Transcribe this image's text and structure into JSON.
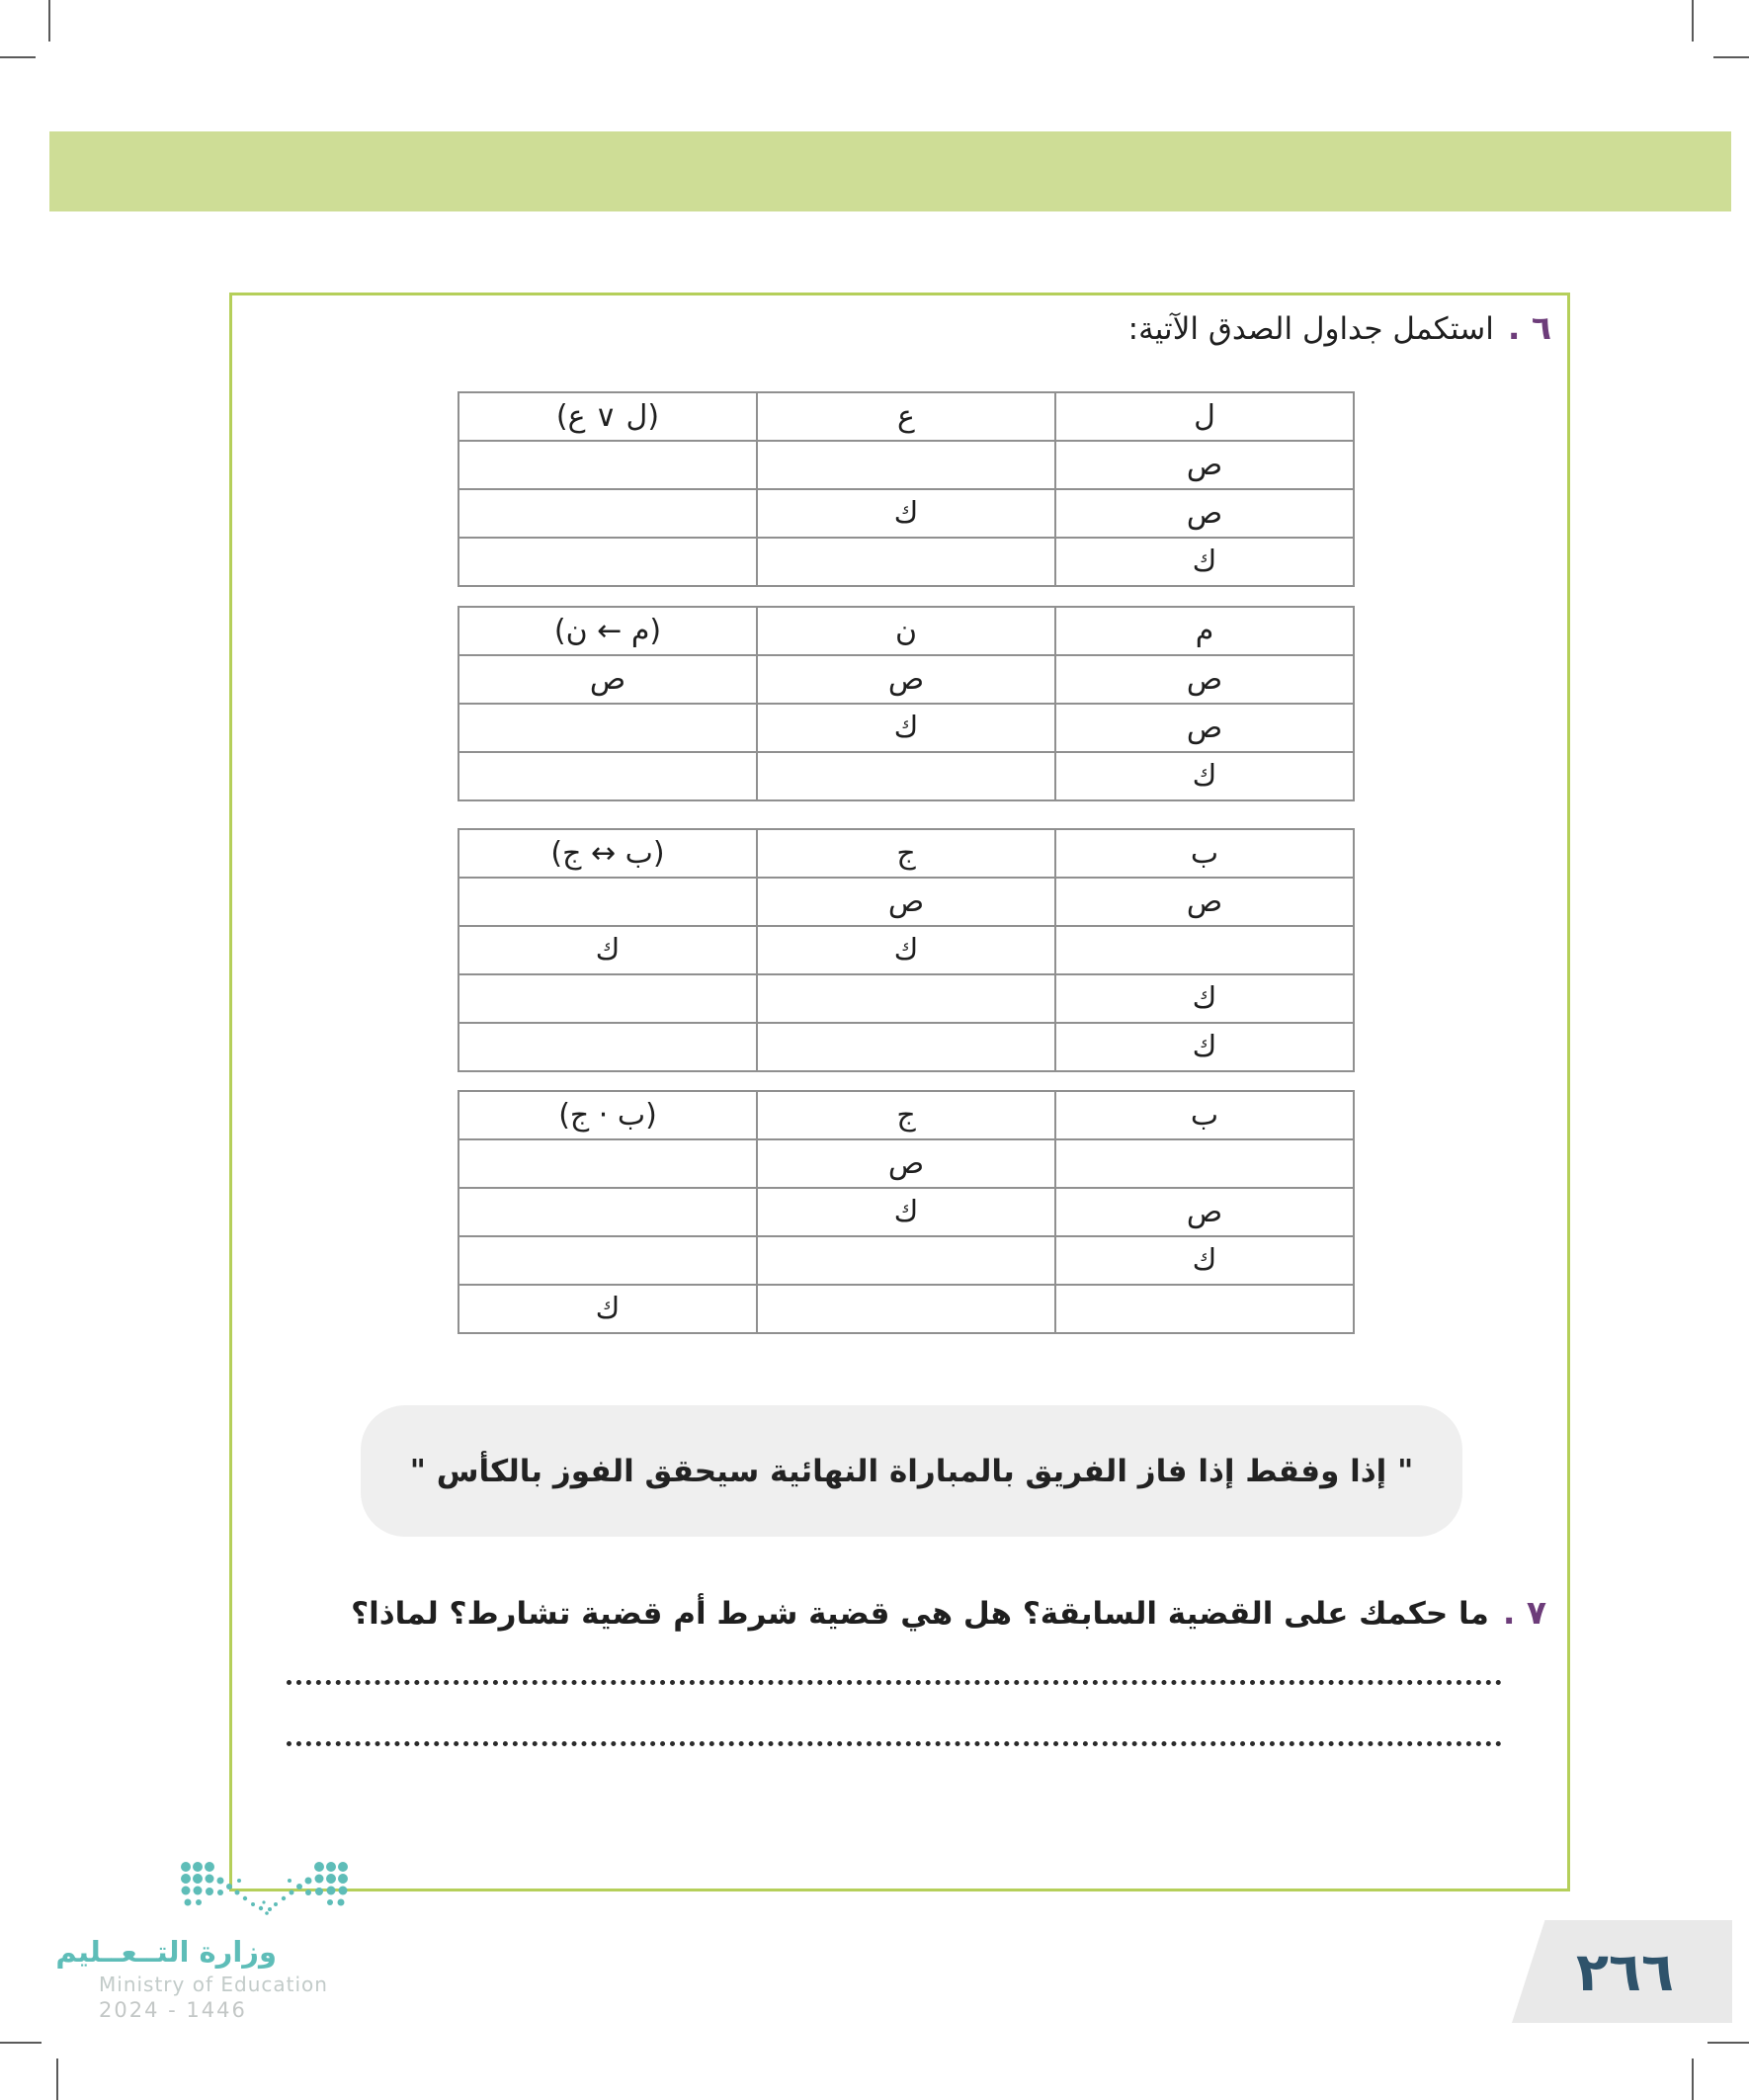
{
  "colors": {
    "band_green": "#cedd96",
    "frame_green": "#b5cf5a",
    "accent_purple": "#6d3c7a",
    "table_border_gray": "#909090",
    "statement_box_gray": "#efefef",
    "badge_gray": "#e9e9e9",
    "page_number_navy": "#2e536b",
    "ministry_teal": "#5ebdb8"
  },
  "question6": {
    "number_label": "٦ .",
    "text": "استكمل جداول الصدق الآتية:",
    "tables": [
      {
        "headers": [
          "ل",
          "ع",
          "(ل ∨ ع)"
        ],
        "rows": [
          [
            "ص",
            "",
            ""
          ],
          [
            "ص",
            "ك",
            ""
          ],
          [
            "ك",
            "",
            ""
          ]
        ]
      },
      {
        "headers": [
          "م",
          "ن",
          "(م ← ن)"
        ],
        "rows": [
          [
            "ص",
            "ص",
            "ص"
          ],
          [
            "ص",
            "ك",
            ""
          ],
          [
            "ك",
            "",
            ""
          ]
        ]
      },
      {
        "headers": [
          "ب",
          "ج",
          "(ب ↔ ج)"
        ],
        "rows": [
          [
            "ص",
            "ص",
            ""
          ],
          [
            "",
            "ك",
            "ك"
          ],
          [
            "ك",
            "",
            ""
          ],
          [
            "ك",
            "",
            ""
          ]
        ]
      },
      {
        "headers": [
          "ب",
          "ج",
          "(ب · ج)"
        ],
        "rows": [
          [
            "",
            "ص",
            ""
          ],
          [
            "ص",
            "ك",
            ""
          ],
          [
            "ك",
            "",
            ""
          ],
          [
            "",
            "",
            "ك"
          ]
        ]
      }
    ]
  },
  "statement": {
    "text": "\" إذا وفقط إذا فاز الفريق بالمباراة النهائية سيحقق الفوز بالكأس \""
  },
  "question7": {
    "number_label": "٧ .",
    "text": "ما حكمك على القضية السابقة؟ هل هي قضية شرط أم قضية تشارط؟ لماذا؟"
  },
  "footer": {
    "ministry_ar": "وزارة التــعــليم",
    "ministry_en": "Ministry of Education",
    "years": "2024 - 1446",
    "page_number": "٢٦٦"
  }
}
